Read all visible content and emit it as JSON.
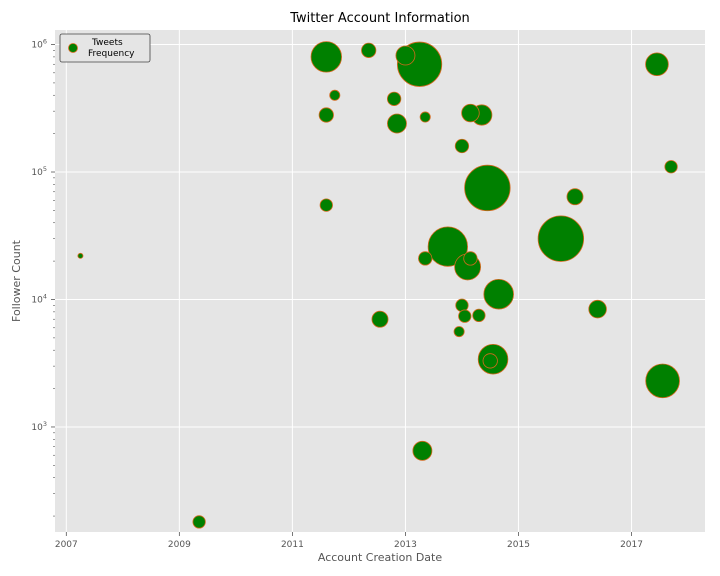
{
  "chart_data": {
    "type": "scatter",
    "title": "Twitter Account Information",
    "xlabel": "Account Creation Date",
    "ylabel": "Follower Count",
    "yscale": "log",
    "xlim": [
      2006.8,
      2018.3
    ],
    "ylim": [
      150,
      1300000
    ],
    "x_ticks": [
      2007,
      2009,
      2011,
      2013,
      2015,
      2017
    ],
    "x_tick_labels": [
      "2007",
      "2009",
      "2011",
      "2013",
      "2015",
      "2017"
    ],
    "y_ticks": [
      1000,
      10000,
      100000,
      1000000
    ],
    "y_tick_labels": [
      {
        "base": "10",
        "exp": "3"
      },
      {
        "base": "10",
        "exp": "4"
      },
      {
        "base": "10",
        "exp": "5"
      },
      {
        "base": "10",
        "exp": "6"
      }
    ],
    "grid": true,
    "legend_position": "top-left",
    "series": [
      {
        "name": "Tweets\n Frequency",
        "color": "#008000",
        "edge_color": "#d2691e",
        "size_encodes": "tweet frequency (relative)",
        "points": [
          {
            "x": 2007.25,
            "y": 22000,
            "size": 0.5
          },
          {
            "x": 2009.35,
            "y": 180,
            "size": 3
          },
          {
            "x": 2011.6,
            "y": 800000,
            "size": 18
          },
          {
            "x": 2011.6,
            "y": 280000,
            "size": 4
          },
          {
            "x": 2011.6,
            "y": 55000,
            "size": 3
          },
          {
            "x": 2011.75,
            "y": 400000,
            "size": 2
          },
          {
            "x": 2012.35,
            "y": 900000,
            "size": 4
          },
          {
            "x": 2012.55,
            "y": 7000,
            "size": 5
          },
          {
            "x": 2012.8,
            "y": 375000,
            "size": 3.5
          },
          {
            "x": 2012.85,
            "y": 240000,
            "size": 7
          },
          {
            "x": 2013.0,
            "y": 820000,
            "size": 7
          },
          {
            "x": 2013.25,
            "y": 700000,
            "size": 38
          },
          {
            "x": 2013.3,
            "y": 650,
            "size": 7
          },
          {
            "x": 2013.35,
            "y": 270000,
            "size": 2
          },
          {
            "x": 2013.35,
            "y": 21000,
            "size": 3.5
          },
          {
            "x": 2013.75,
            "y": 26000,
            "size": 30
          },
          {
            "x": 2014.0,
            "y": 160000,
            "size": 3.5
          },
          {
            "x": 2014.0,
            "y": 9000,
            "size": 3
          },
          {
            "x": 2013.95,
            "y": 5600,
            "size": 2
          },
          {
            "x": 2014.05,
            "y": 7400,
            "size": 3
          },
          {
            "x": 2014.1,
            "y": 18000,
            "size": 13
          },
          {
            "x": 2014.15,
            "y": 21000,
            "size": 3.5
          },
          {
            "x": 2014.15,
            "y": 290000,
            "size": 6
          },
          {
            "x": 2014.3,
            "y": 7500,
            "size": 3
          },
          {
            "x": 2014.35,
            "y": 280000,
            "size": 8
          },
          {
            "x": 2014.45,
            "y": 75000,
            "size": 40
          },
          {
            "x": 2014.5,
            "y": 3300,
            "size": 4
          },
          {
            "x": 2014.55,
            "y": 3400,
            "size": 17
          },
          {
            "x": 2014.65,
            "y": 11000,
            "size": 17
          },
          {
            "x": 2015.75,
            "y": 30000,
            "size": 40
          },
          {
            "x": 2016.0,
            "y": 64000,
            "size": 5
          },
          {
            "x": 2016.4,
            "y": 8400,
            "size": 6
          },
          {
            "x": 2017.45,
            "y": 700000,
            "size": 10
          },
          {
            "x": 2017.55,
            "y": 2300,
            "size": 22
          },
          {
            "x": 2017.7,
            "y": 110000,
            "size": 3
          }
        ]
      }
    ]
  }
}
